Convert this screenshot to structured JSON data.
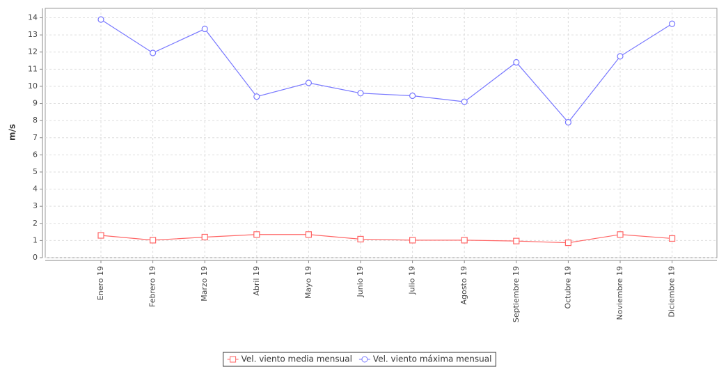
{
  "chart_data": {
    "type": "line",
    "y_label": "m/s",
    "categories": [
      "Enero 19",
      "Febrero 19",
      "Marzo 19",
      "Abril 19",
      "Mayo 19",
      "Junio 19",
      "Julio 19",
      "Agosto 19",
      "Septiembre 19",
      "Octubre 19",
      "Noviembre 19",
      "Diciembre 19"
    ],
    "series": [
      {
        "name": "Vel. viento media mensual",
        "color": "#ff6666",
        "marker": "square",
        "values": [
          1.3,
          1.02,
          1.2,
          1.35,
          1.35,
          1.08,
          1.02,
          1.02,
          0.97,
          0.87,
          1.35,
          1.12
        ]
      },
      {
        "name": "Vel. viento máxima mensual",
        "color": "#7777ff",
        "marker": "circle",
        "values": [
          13.9,
          11.95,
          13.35,
          9.4,
          10.2,
          9.6,
          9.45,
          9.1,
          11.4,
          7.9,
          11.75,
          13.65
        ]
      }
    ],
    "ylim": [
      0,
      14.55
    ],
    "yticks": [
      0,
      1,
      2,
      3,
      4,
      5,
      6,
      7,
      8,
      9,
      10,
      11,
      12,
      13,
      14
    ],
    "grid": true,
    "legend": "bottom"
  }
}
